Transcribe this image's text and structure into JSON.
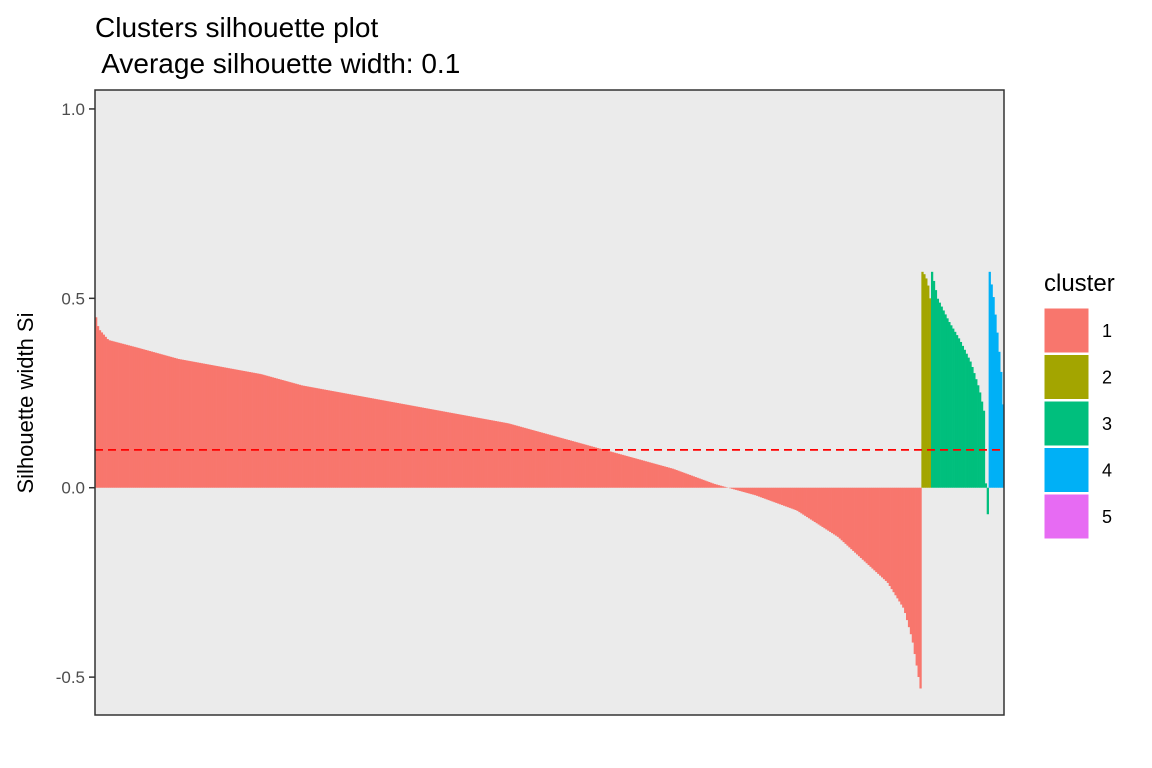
{
  "chart_data": {
    "type": "bar",
    "title": "Clusters silhouette plot",
    "subtitle": " Average silhouette width: 0.1",
    "xlabel": "",
    "ylabel": "Silhouette width Si",
    "ylim": [
      -0.6,
      1.05
    ],
    "yticks": [
      {
        "value": -0.5,
        "label": "-0.5"
      },
      {
        "value": 0.0,
        "label": "0.0"
      },
      {
        "value": 0.5,
        "label": "0.5"
      },
      {
        "value": 1.0,
        "label": "1.0"
      }
    ],
    "average_silhouette_width": 0.1,
    "reference_line": {
      "value": 0.1,
      "color": "#FF0000",
      "style": "dashed"
    },
    "grid": false,
    "legend": {
      "title": "cluster",
      "position": "right"
    },
    "series": [
      {
        "name": "1",
        "color": "#F8766D",
        "count": 430,
        "profile": [
          [
            0.0,
            0.45
          ],
          [
            0.003,
            0.42
          ],
          [
            0.015,
            0.39
          ],
          [
            0.05,
            0.37
          ],
          [
            0.1,
            0.34
          ],
          [
            0.15,
            0.32
          ],
          [
            0.2,
            0.3
          ],
          [
            0.25,
            0.27
          ],
          [
            0.3,
            0.25
          ],
          [
            0.35,
            0.23
          ],
          [
            0.4,
            0.21
          ],
          [
            0.45,
            0.19
          ],
          [
            0.5,
            0.17
          ],
          [
            0.55,
            0.14
          ],
          [
            0.6,
            0.11
          ],
          [
            0.65,
            0.08
          ],
          [
            0.7,
            0.05
          ],
          [
            0.75,
            0.01
          ],
          [
            0.8,
            -0.02
          ],
          [
            0.85,
            -0.06
          ],
          [
            0.9,
            -0.13
          ],
          [
            0.93,
            -0.19
          ],
          [
            0.96,
            -0.25
          ],
          [
            0.98,
            -0.32
          ],
          [
            0.99,
            -0.4
          ],
          [
            1.0,
            -0.53
          ]
        ]
      },
      {
        "name": "2",
        "color": "#A3A500",
        "count": 5,
        "profile": [
          [
            0.0,
            0.57
          ],
          [
            0.4,
            0.56
          ],
          [
            0.8,
            0.53
          ],
          [
            1.0,
            0.5
          ]
        ]
      },
      {
        "name": "3",
        "color": "#00BF7D",
        "count": 30,
        "profile": [
          [
            0.0,
            0.57
          ],
          [
            0.1,
            0.5
          ],
          [
            0.3,
            0.44
          ],
          [
            0.5,
            0.39
          ],
          [
            0.7,
            0.33
          ],
          [
            0.85,
            0.26
          ],
          [
            0.95,
            0.19
          ],
          [
            0.97,
            -0.04
          ],
          [
            1.0,
            -0.07
          ]
        ]
      },
      {
        "name": "4",
        "color": "#00B0F6",
        "count": 8,
        "profile": [
          [
            0.0,
            0.57
          ],
          [
            0.3,
            0.5
          ],
          [
            0.6,
            0.4
          ],
          [
            0.85,
            0.31
          ],
          [
            1.0,
            0.22
          ]
        ]
      },
      {
        "name": "5",
        "color": "#E76BF3",
        "count": 0,
        "profile": []
      }
    ]
  }
}
